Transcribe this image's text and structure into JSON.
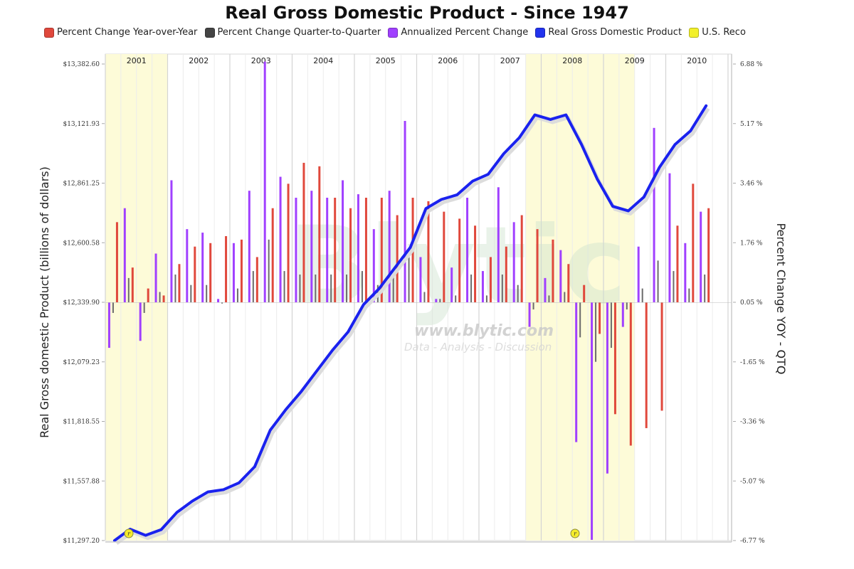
{
  "chart_data": {
    "type": "bar",
    "title": "Real Gross Domestic Product - Since 1947",
    "ylabel_left": "Real Gross domestic Product (billions of dollars)",
    "ylabel_right": "Percent Change YOY - QTQ",
    "xlabel": "",
    "legend_position": "top",
    "grid": true,
    "legend": [
      {
        "name": "Percent Change Year-over-Year",
        "color": "#e0483c"
      },
      {
        "name": "Percent Change Quarter-to-Quarter",
        "color": "#444444"
      },
      {
        "name": "Annualized Percent Change",
        "color": "#a040ff"
      },
      {
        "name": "Real Gross Domestic Product",
        "color": "#2233ee"
      },
      {
        "name": "U.S. Reco",
        "color": "#f2f02a"
      }
    ],
    "year_labels": [
      "2001",
      "2002",
      "2003",
      "2004",
      "2005",
      "2006",
      "2007",
      "2008",
      "2009",
      "2010"
    ],
    "left_axis": {
      "ticks": [
        "$13,382.60",
        "$13,121.93",
        "$12,861.25",
        "$12,600.58",
        "$12,339.90",
        "$12,079.23",
        "$11,818.55",
        "$11,557.88",
        "$11,297.20"
      ],
      "range": [
        11297.2,
        13382.6
      ]
    },
    "right_axis": {
      "ticks": [
        "6.88 %",
        "5.17 %",
        "3.46 %",
        "1.76 %",
        "0.05 %",
        "-1.65 %",
        "-3.36 %",
        "-5.07 %",
        "-6.77 %"
      ],
      "range": [
        -6.77,
        6.88
      ]
    },
    "recessions": [
      {
        "start": "2001Q1",
        "end": "2001Q4",
        "marker": "r"
      },
      {
        "start": "2007Q4",
        "end": "2009Q2",
        "marker": "r"
      }
    ],
    "quarters": [
      "2001Q1",
      "2001Q2",
      "2001Q3",
      "2001Q4",
      "2002Q1",
      "2002Q2",
      "2002Q3",
      "2002Q4",
      "2003Q1",
      "2003Q2",
      "2003Q3",
      "2003Q4",
      "2004Q1",
      "2004Q2",
      "2004Q3",
      "2004Q4",
      "2005Q1",
      "2005Q2",
      "2005Q3",
      "2005Q4",
      "2006Q1",
      "2006Q2",
      "2006Q3",
      "2006Q4",
      "2007Q1",
      "2007Q2",
      "2007Q3",
      "2007Q4",
      "2008Q1",
      "2008Q2",
      "2008Q3",
      "2008Q4",
      "2009Q1",
      "2009Q2",
      "2009Q3",
      "2009Q4",
      "2010Q1",
      "2010Q2",
      "2010Q3"
    ],
    "series": [
      {
        "name": "Annualized Percent Change",
        "values": [
          -1.3,
          2.7,
          -1.1,
          1.4,
          3.5,
          2.1,
          2.0,
          0.1,
          1.7,
          3.2,
          6.9,
          3.6,
          3.0,
          3.2,
          3.0,
          3.5,
          3.1,
          2.1,
          3.2,
          5.2,
          1.3,
          0.1,
          1.0,
          3.0,
          0.9,
          3.3,
          2.3,
          -0.7,
          0.7,
          1.5,
          -4.0,
          -6.8,
          -4.9,
          -0.7,
          1.6,
          5.0,
          3.7,
          1.7,
          2.6
        ]
      },
      {
        "name": "Percent Change Quarter-to-Quarter",
        "values": [
          -0.3,
          0.7,
          -0.3,
          0.3,
          0.8,
          0.5,
          0.5,
          0.0,
          0.4,
          0.9,
          1.8,
          0.9,
          0.8,
          0.8,
          0.8,
          0.8,
          0.9,
          0.5,
          0.8,
          1.3,
          0.3,
          0.1,
          0.2,
          0.8,
          0.2,
          0.8,
          0.5,
          -0.2,
          0.2,
          0.3,
          -1.0,
          -1.7,
          -1.3,
          -0.2,
          0.4,
          1.2,
          0.9,
          0.4,
          0.8
        ]
      },
      {
        "name": "Percent Change Year-over-Year",
        "values": [
          2.3,
          1.0,
          0.4,
          0.2,
          1.1,
          1.6,
          1.7,
          1.9,
          1.8,
          1.3,
          2.7,
          3.4,
          4.0,
          3.9,
          3.0,
          2.7,
          3.0,
          3.0,
          2.5,
          3.0,
          2.9,
          2.6,
          2.4,
          2.2,
          1.3,
          1.6,
          2.5,
          2.1,
          1.8,
          1.1,
          0.5,
          -0.9,
          -3.2,
          -4.1,
          -3.6,
          -3.1,
          2.2,
          3.4,
          2.7
        ]
      },
      {
        "name": "Real Gross Domestic Product",
        "axis": "left",
        "values": [
          11297.2,
          11347.0,
          11320.0,
          11345.0,
          11420.0,
          11470.0,
          11510.0,
          11520.0,
          11550.0,
          11620.0,
          11780.0,
          11870.0,
          11950.0,
          12040.0,
          12130.0,
          12210.0,
          12330.0,
          12400.0,
          12490.0,
          12580.0,
          12750.0,
          12790.0,
          12810.0,
          12870.0,
          12900.0,
          12990.0,
          13060.0,
          13160.0,
          13140.0,
          13160.0,
          13030.0,
          12880.0,
          12760.0,
          12740.0,
          12800.0,
          12930.0,
          13030.0,
          13090.0,
          13200.0
        ]
      }
    ]
  },
  "watermark": {
    "brand": "Blytic",
    "url": "www.blytic.com",
    "tagline": "Data - Analysis - Discussion"
  },
  "recession_marker_text": "r"
}
